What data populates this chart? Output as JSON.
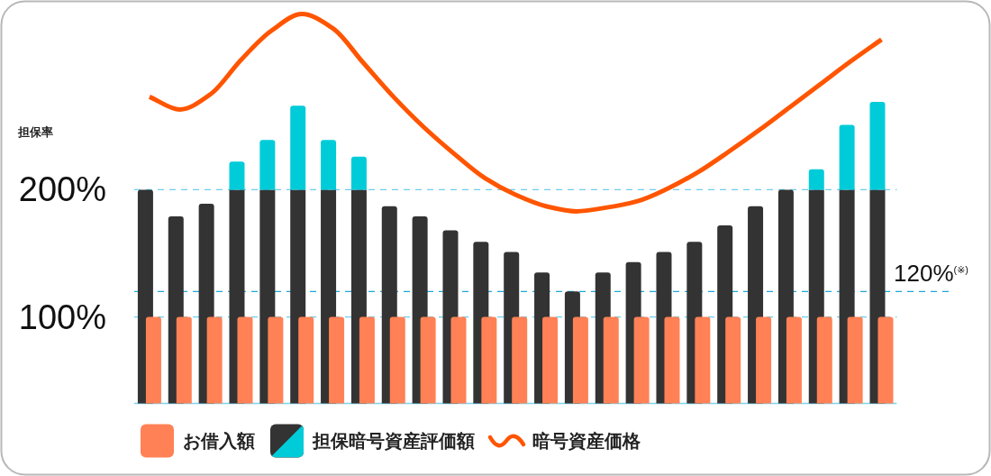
{
  "chart_data": {
    "type": "bar",
    "ylabel": "担保率",
    "categories": [
      null,
      null,
      null,
      null,
      null,
      null,
      null,
      null,
      null,
      null,
      null,
      null,
      null,
      null,
      null,
      null,
      null,
      null,
      null,
      null,
      null,
      null,
      null,
      null,
      null
    ],
    "series": [
      {
        "name": "お借入額",
        "color": "#ff8155",
        "values": [
          100,
          100,
          100,
          100,
          100,
          100,
          100,
          100,
          100,
          100,
          100,
          100,
          100,
          100,
          100,
          100,
          100,
          100,
          100,
          100,
          100,
          100,
          100,
          100,
          100
        ]
      },
      {
        "name": "担保暗号資産評価額",
        "color": "#333333",
        "values": [
          200,
          179,
          189,
          200,
          200,
          200,
          200,
          200,
          187,
          179,
          168,
          159,
          151,
          135,
          120,
          135,
          143,
          151,
          159,
          172,
          187,
          200,
          200,
          200,
          200
        ]
      },
      {
        "color": "#00ccd9",
        "base": [
          null,
          null,
          null,
          200,
          200,
          200,
          200,
          200,
          null,
          null,
          null,
          null,
          null,
          null,
          null,
          null,
          null,
          null,
          null,
          null,
          null,
          null,
          200,
          200,
          200
        ],
        "values": [
          null,
          null,
          null,
          22,
          39,
          66,
          39,
          26,
          null,
          null,
          null,
          null,
          null,
          null,
          null,
          null,
          null,
          null,
          null,
          null,
          null,
          null,
          16,
          51,
          69
        ]
      },
      {
        "name": "暗号資産価格",
        "type": "line",
        "color": "#ff5500",
        "values": [
          273,
          263,
          275,
          302,
          325,
          338,
          327,
          300,
          273,
          249,
          228,
          209,
          196,
          187,
          183,
          186,
          191,
          201,
          214,
          230,
          247,
          265,
          283,
          301,
          318
        ]
      }
    ],
    "ylim": [
      32,
      348
    ],
    "yticks": [
      {
        "value": 200,
        "label": "200%"
      },
      {
        "value": 100,
        "label": "100%"
      }
    ],
    "grid": "y",
    "legend": "bottom",
    "ref_lines": [
      {
        "axis": "y",
        "value": 120,
        "label": "120%$^{(※)}$",
        "color": "#1ea7d8",
        "line_style": "dashed"
      }
    ]
  }
}
